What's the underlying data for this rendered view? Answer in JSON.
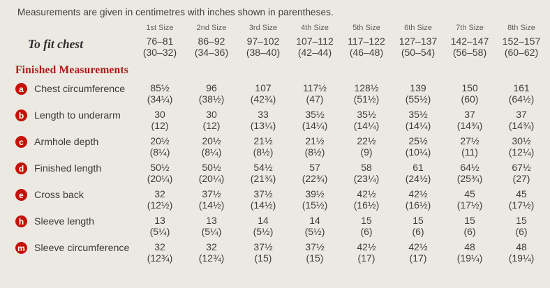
{
  "colors": {
    "background": "#ebe9e2",
    "badge_red": "#c41208",
    "heading_red": "#ae1a17"
  },
  "intro": "Measurements are given in centimetres with inches shown in parentheses.",
  "size_headers": [
    "1st Size",
    "2nd Size",
    "3rd Size",
    "4th Size",
    "5th Size",
    "6th Size",
    "7th Size",
    "8th Size"
  ],
  "to_fit": {
    "label": "To fit chest",
    "cm": [
      "76–81",
      "86–92",
      "97–102",
      "107–112",
      "117–122",
      "127–137",
      "142–147",
      "152–157"
    ],
    "inches": [
      "(30–32)",
      "(34–36)",
      "(38–40)",
      "(42–44)",
      "(46–48)",
      "(50–54)",
      "(56–58)",
      "(60–62)"
    ]
  },
  "section_heading": "Finished Measurements",
  "rows": [
    {
      "badge": "a",
      "label": "Chest circumference",
      "cm": [
        "85½",
        "96",
        "107",
        "117½",
        "128½",
        "139",
        "150",
        "161"
      ],
      "inches": [
        "(34¼)",
        "(38½)",
        "(42¾)",
        "(47)",
        "(51½)",
        "(55½)",
        "(60)",
        "(64½)"
      ]
    },
    {
      "badge": "b",
      "label": "Length to underarm",
      "cm": [
        "30",
        "30",
        "33",
        "35½",
        "35½",
        "35½",
        "37",
        "37"
      ],
      "inches": [
        "(12)",
        "(12)",
        "(13¼)",
        "(14¼)",
        "(14¼)",
        "(14¼)",
        "(14¾)",
        "(14¾)"
      ]
    },
    {
      "badge": "c",
      "label": "Armhole depth",
      "cm": [
        "20½",
        "20½",
        "21½",
        "21½",
        "22½",
        "25½",
        "27½",
        "30½"
      ],
      "inches": [
        "(8¼)",
        "(8¼)",
        "(8½)",
        "(8½)",
        "(9)",
        "(10¼)",
        "(11)",
        "(12¼)"
      ]
    },
    {
      "badge": "d",
      "label": "Finished length",
      "cm": [
        "50½",
        "50½",
        "54½",
        "57",
        "58",
        "61",
        "64½",
        "67½"
      ],
      "inches": [
        "(20¼)",
        "(20¼)",
        "(21¾)",
        "(22¾)",
        "(23¼)",
        "(24½)",
        "(25¾)",
        "(27)"
      ]
    },
    {
      "badge": "e",
      "label": "Cross back",
      "cm": [
        "32",
        "37½",
        "37½",
        "39½",
        "42½",
        "42½",
        "45",
        "45"
      ],
      "inches": [
        "(12½)",
        "(14½)",
        "(14½)",
        "(15½)",
        "(16½)",
        "(16½)",
        "(17½)",
        "(17½)"
      ]
    },
    {
      "badge": "h",
      "label": "Sleeve length",
      "cm": [
        "13",
        "13",
        "14",
        "14",
        "15",
        "15",
        "15",
        "15"
      ],
      "inches": [
        "(5¼)",
        "(5¼)",
        "(5½)",
        "(5½)",
        "(6)",
        "(6)",
        "(6)",
        "(6)"
      ]
    },
    {
      "badge": "m",
      "label": "Sleeve circumference",
      "cm": [
        "32",
        "32",
        "37½",
        "37½",
        "42½",
        "42½",
        "48",
        "48"
      ],
      "inches": [
        "(12¾)",
        "(12¾)",
        "(15)",
        "(15)",
        "(17)",
        "(17)",
        "(19¼)",
        "(19¼)"
      ]
    }
  ]
}
